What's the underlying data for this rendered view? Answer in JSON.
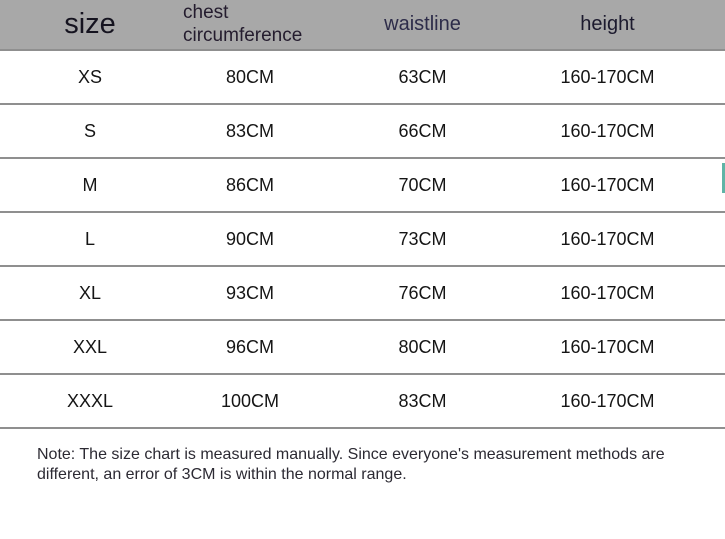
{
  "colors": {
    "header_bg": "#a8a8a8",
    "divider": "#8f8f8f",
    "body_bg": "#ffffff",
    "accent_teal": "#5fb4a6"
  },
  "chart_data": {
    "type": "table",
    "columns": [
      "size",
      "chest circumference",
      "waistline",
      "height"
    ],
    "rows": [
      [
        "XS",
        "80CM",
        "63CM",
        "160-170CM"
      ],
      [
        "S",
        "83CM",
        "66CM",
        "160-170CM"
      ],
      [
        "M",
        "86CM",
        "70CM",
        "160-170CM"
      ],
      [
        "L",
        "90CM",
        "73CM",
        "160-170CM"
      ],
      [
        "XL",
        "93CM",
        "76CM",
        "160-170CM"
      ],
      [
        "XXL",
        "96CM",
        "80CM",
        "160-170CM"
      ],
      [
        "XXXL",
        "100CM",
        "83CM",
        "160-170CM"
      ]
    ],
    "title": "",
    "layout": "header row gray, body rows white, horizontal gray dividers"
  },
  "note": {
    "line1": "Note: The size chart is measured manually. Since everyone's measurement methods are",
    "line2": "different, an error of 3CM is within the normal range."
  }
}
